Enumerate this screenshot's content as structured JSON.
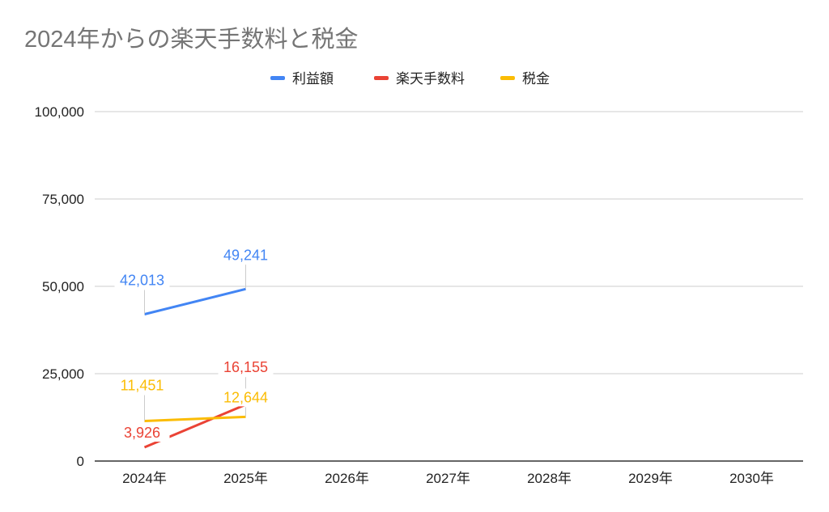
{
  "chart_data": {
    "type": "line",
    "title": "2024年からの楽天手数料と税金",
    "xlabel": "",
    "ylabel": "",
    "categories": [
      "2024年",
      "2025年",
      "2026年",
      "2027年",
      "2028年",
      "2029年",
      "2030年"
    ],
    "ylim": [
      0,
      100000
    ],
    "yticks": [
      0,
      25000,
      50000,
      75000,
      100000
    ],
    "ytick_labels": [
      "0",
      "25,000",
      "50,000",
      "75,000",
      "100,000"
    ],
    "grid": true,
    "legend_position": "top",
    "series": [
      {
        "name": "利益額",
        "color": "#4285F4",
        "values": [
          42013,
          49241,
          null,
          null,
          null,
          null,
          null
        ],
        "labels": [
          "42,013",
          "49,241"
        ]
      },
      {
        "name": "楽天手数料",
        "color": "#EA4335",
        "values": [
          3926,
          16155,
          null,
          null,
          null,
          null,
          null
        ],
        "labels": [
          "3,926",
          "16,155"
        ]
      },
      {
        "name": "税金",
        "color": "#FBBC04",
        "values": [
          11451,
          12644,
          null,
          null,
          null,
          null,
          null
        ],
        "labels": [
          "11,451",
          "12,644"
        ]
      }
    ]
  }
}
